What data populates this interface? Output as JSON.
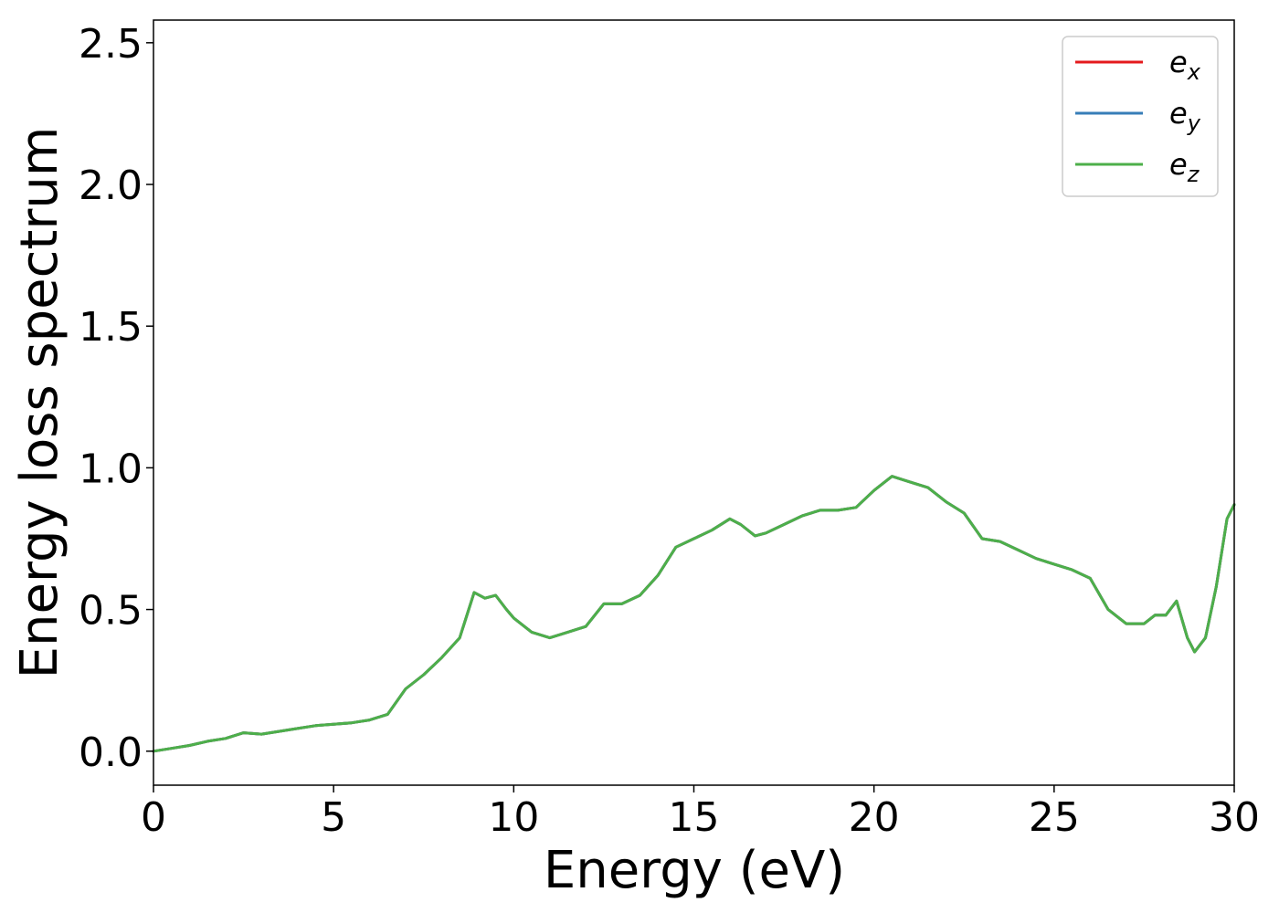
{
  "chart_data": {
    "type": "line",
    "title": "",
    "xlabel": "Energy (eV)",
    "ylabel": "Energy loss spectrum",
    "xlim": [
      0,
      30
    ],
    "ylim": [
      -0.12,
      2.58
    ],
    "xticks": [
      0,
      5,
      10,
      15,
      20,
      25,
      30
    ],
    "xtick_labels": [
      "0",
      "5",
      "10",
      "15",
      "20",
      "25",
      "30"
    ],
    "yticks": [
      0.0,
      0.5,
      1.0,
      1.5,
      2.0,
      2.5
    ],
    "ytick_labels": [
      "0.0",
      "0.5",
      "1.0",
      "1.5",
      "2.0",
      "2.5"
    ],
    "grid": false,
    "legend_position": "top-right",
    "x": [
      0,
      0.5,
      1.0,
      1.5,
      2.0,
      2.5,
      3.0,
      3.5,
      4.0,
      4.5,
      5.0,
      5.5,
      6.0,
      6.5,
      7.0,
      7.5,
      8.0,
      8.5,
      8.9,
      9.2,
      9.5,
      9.8,
      10.0,
      10.5,
      11.0,
      11.5,
      12.0,
      12.5,
      13.0,
      13.5,
      14.0,
      14.5,
      15.0,
      15.5,
      16.0,
      16.3,
      16.7,
      17.0,
      17.5,
      18.0,
      18.5,
      19.0,
      19.5,
      20.0,
      20.5,
      21.0,
      21.5,
      22.0,
      22.5,
      23.0,
      23.5,
      24.0,
      24.5,
      25.0,
      25.5,
      26.0,
      26.5,
      27.0,
      27.5,
      27.8,
      28.1,
      28.4,
      28.7,
      28.9,
      29.2,
      29.5,
      29.8,
      30.0
    ],
    "series": [
      {
        "name": "e_x",
        "label_base": "e",
        "label_sub": "x",
        "color": "#e41a1c",
        "values": [
          0.0,
          0.01,
          0.02,
          0.035,
          0.045,
          0.065,
          0.06,
          0.07,
          0.08,
          0.09,
          0.095,
          0.1,
          0.11,
          0.13,
          0.22,
          0.27,
          0.33,
          0.4,
          0.56,
          0.54,
          0.55,
          0.5,
          0.47,
          0.42,
          0.4,
          0.42,
          0.44,
          0.52,
          0.52,
          0.55,
          0.62,
          0.72,
          0.75,
          0.78,
          0.82,
          0.8,
          0.76,
          0.77,
          0.8,
          0.83,
          0.85,
          0.85,
          0.86,
          0.92,
          0.97,
          0.95,
          0.93,
          0.88,
          0.84,
          0.75,
          0.74,
          0.71,
          0.68,
          0.66,
          0.64,
          0.61,
          0.5,
          0.45,
          0.45,
          0.48,
          0.48,
          0.53,
          0.4,
          0.35,
          0.4,
          0.58,
          0.82,
          0.87
        ]
      },
      {
        "name": "e_y",
        "label_base": "e",
        "label_sub": "y",
        "color": "#377eb8",
        "values": [
          0.0,
          0.01,
          0.02,
          0.035,
          0.045,
          0.065,
          0.06,
          0.07,
          0.08,
          0.09,
          0.095,
          0.1,
          0.11,
          0.13,
          0.22,
          0.27,
          0.33,
          0.4,
          0.56,
          0.54,
          0.55,
          0.5,
          0.47,
          0.42,
          0.4,
          0.42,
          0.44,
          0.52,
          0.52,
          0.55,
          0.62,
          0.72,
          0.75,
          0.78,
          0.82,
          0.8,
          0.76,
          0.77,
          0.8,
          0.83,
          0.85,
          0.85,
          0.86,
          0.92,
          0.97,
          0.95,
          0.93,
          0.88,
          0.84,
          0.75,
          0.74,
          0.71,
          0.68,
          0.66,
          0.64,
          0.61,
          0.5,
          0.45,
          0.45,
          0.48,
          0.48,
          0.53,
          0.4,
          0.35,
          0.4,
          0.58,
          0.82,
          0.87
        ]
      },
      {
        "name": "e_z",
        "label_base": "e",
        "label_sub": "z",
        "color": "#4daf4a",
        "values": [
          0.0,
          0.01,
          0.02,
          0.035,
          0.045,
          0.065,
          0.06,
          0.07,
          0.08,
          0.09,
          0.095,
          0.1,
          0.11,
          0.13,
          0.22,
          0.27,
          0.33,
          0.4,
          0.56,
          0.54,
          0.55,
          0.5,
          0.47,
          0.42,
          0.4,
          0.42,
          0.44,
          0.52,
          0.52,
          0.55,
          0.62,
          0.72,
          0.75,
          0.78,
          0.82,
          0.8,
          0.76,
          0.77,
          0.8,
          0.83,
          0.85,
          0.85,
          0.86,
          0.92,
          0.97,
          0.95,
          0.93,
          0.88,
          0.84,
          0.75,
          0.74,
          0.71,
          0.68,
          0.66,
          0.64,
          0.61,
          0.5,
          0.45,
          0.45,
          0.48,
          0.48,
          0.53,
          0.4,
          0.35,
          0.4,
          0.58,
          0.82,
          0.87
        ]
      }
    ]
  }
}
